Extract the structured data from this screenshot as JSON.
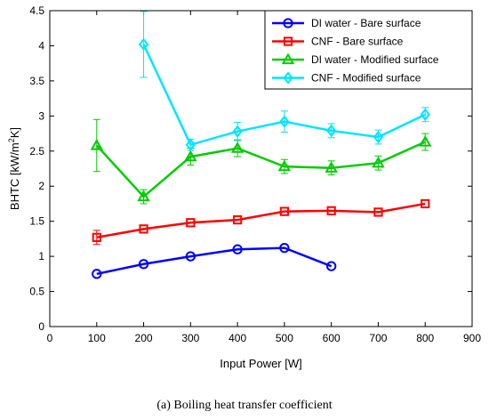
{
  "chart_data": {
    "type": "line",
    "xlabel": "Input Power [W]",
    "ylabel": "BHTC [kW/m²K]",
    "ylabel_parts": {
      "pre": "BHTC [kW/m",
      "sup": "2",
      "post": "K]"
    },
    "xlim": [
      0,
      900
    ],
    "ylim": [
      0,
      4.5
    ],
    "xticks": [
      0,
      100,
      200,
      300,
      400,
      500,
      600,
      700,
      800,
      900
    ],
    "yticks": [
      0,
      0.5,
      1,
      1.5,
      2,
      2.5,
      3,
      3.5,
      4,
      4.5
    ],
    "xtick_labels": [
      "0",
      "100",
      "200",
      "300",
      "400",
      "500",
      "600",
      "700",
      "800",
      "900"
    ],
    "ytick_labels": [
      "0",
      "0.5",
      "1",
      "1.5",
      "2",
      "2.5",
      "3",
      "3.5",
      "4",
      "4.5"
    ],
    "grid": false,
    "legend_position": "top-right",
    "series": [
      {
        "name": "DI water - Bare surface",
        "color": "#0000ff",
        "marker": "circle",
        "x": [
          100,
          200,
          300,
          400,
          500,
          600
        ],
        "y": [
          0.75,
          0.89,
          1.0,
          1.1,
          1.12,
          0.86
        ],
        "err": [
          0,
          0,
          0,
          0,
          0,
          0
        ]
      },
      {
        "name": "CNF - Bare surface",
        "color": "#ff0000",
        "marker": "square",
        "x": [
          100,
          200,
          300,
          400,
          500,
          600,
          700,
          800
        ],
        "y": [
          1.27,
          1.39,
          1.48,
          1.52,
          1.64,
          1.65,
          1.63,
          1.75
        ],
        "err": [
          0.1,
          0,
          0,
          0,
          0,
          0,
          0,
          0
        ]
      },
      {
        "name": "DI water - Modified surface",
        "color": "#00cc00",
        "marker": "triangle",
        "x": [
          100,
          200,
          300,
          400,
          500,
          600,
          700,
          800
        ],
        "y": [
          2.58,
          1.85,
          2.42,
          2.54,
          2.28,
          2.26,
          2.33,
          2.63
        ],
        "err": [
          0.37,
          0.1,
          0.12,
          0.12,
          0.1,
          0.1,
          0.1,
          0.12
        ]
      },
      {
        "name": "CNF - Modified surface",
        "color": "#00e5ff",
        "marker": "diamond",
        "x": [
          100,
          200,
          300,
          400,
          500,
          600,
          700,
          800
        ],
        "y": [
          null,
          4.02,
          2.59,
          2.78,
          2.92,
          2.79,
          2.7,
          3.02
        ],
        "err": [
          0,
          0.47,
          0.08,
          0.13,
          0.15,
          0.1,
          0.1,
          0.1
        ]
      }
    ]
  },
  "caption": "(a) Boiling heat transfer coefficient"
}
